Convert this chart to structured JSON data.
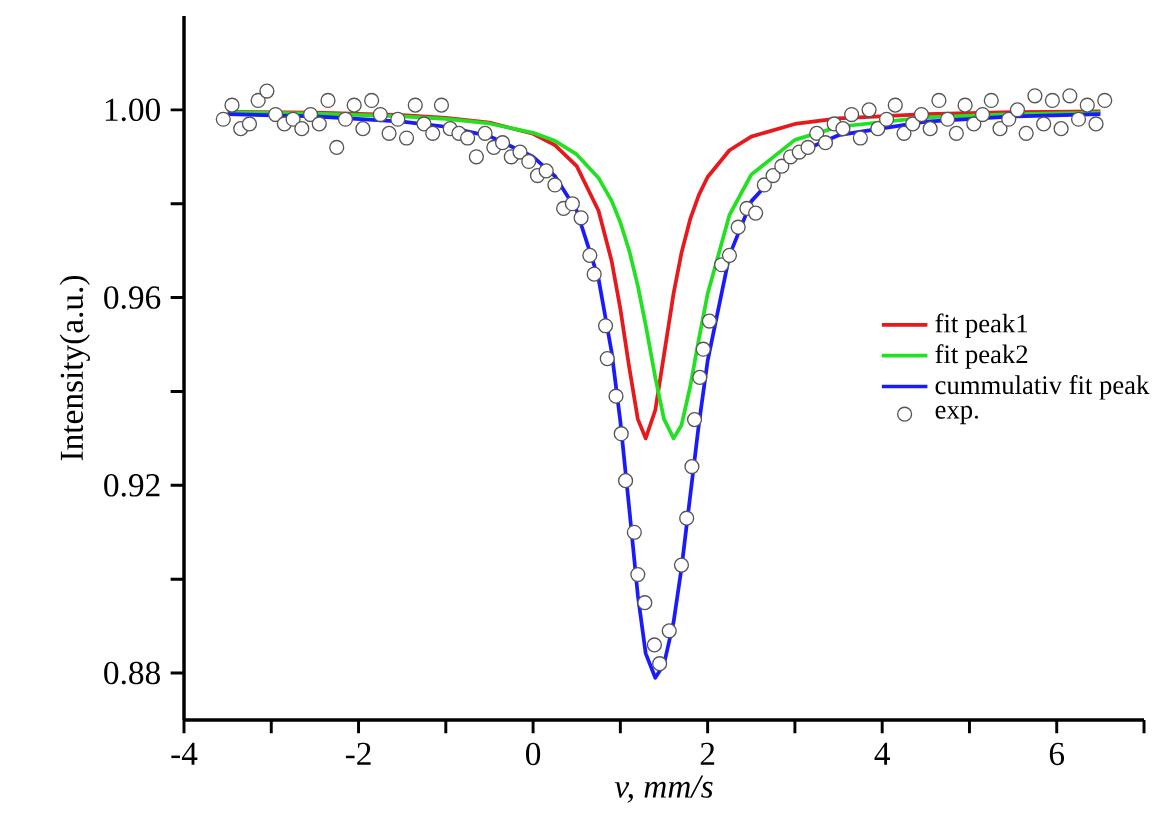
{
  "chart_data": {
    "type": "line",
    "xlabel": "v, mm/s",
    "ylabel": "Intensity(a.u.)",
    "xlim": [
      -4,
      7
    ],
    "ylim": [
      0.87,
      1.02
    ],
    "xticks": [
      -4,
      {
        "value": -3,
        "label": null
      },
      -2,
      {
        "value": -1,
        "label": null
      },
      0,
      {
        "value": 1,
        "label": null
      },
      2,
      {
        "value": 3,
        "label": null
      },
      4,
      {
        "value": 5,
        "label": null
      },
      6,
      {
        "value": 7,
        "label": null
      }
    ],
    "yticks": [
      0.88,
      {
        "value": 0.9,
        "label": null
      },
      0.92,
      {
        "value": 0.94,
        "label": null
      },
      0.96,
      {
        "value": 0.98,
        "label": null
      },
      {
        "value": 1.0,
        "label": "1.00"
      }
    ],
    "legend": "right",
    "line_style": "solid",
    "series": [
      {
        "name": "fit peak1",
        "color": "#e8191c",
        "x": [
          -3.5,
          -2.5,
          -1.5,
          -1,
          -0.5,
          0,
          0.25,
          0.5,
          0.75,
          0.9,
          1.0,
          1.1,
          1.2,
          1.29,
          1.4,
          1.5,
          1.61,
          1.7,
          1.8,
          1.9,
          2.0,
          2.25,
          2.5,
          3,
          3.5,
          4.5,
          5.5,
          6.5
        ],
        "values": [
          0.9996,
          0.9994,
          0.9989,
          0.9983,
          0.9973,
          0.9949,
          0.9925,
          0.988,
          0.9785,
          0.9678,
          0.9576,
          0.9453,
          0.9341,
          0.93,
          0.936,
          0.9478,
          0.9609,
          0.9695,
          0.9767,
          0.9819,
          0.9857,
          0.9914,
          0.9943,
          0.997,
          0.9982,
          0.9991,
          0.9995,
          0.9997
        ]
      },
      {
        "name": "fit peak2",
        "color": "#22e022",
        "x": [
          -3.5,
          -2.5,
          -1.5,
          -1,
          -0.5,
          0,
          0.25,
          0.5,
          0.75,
          0.9,
          1.0,
          1.1,
          1.2,
          1.29,
          1.4,
          1.5,
          1.61,
          1.7,
          1.8,
          1.9,
          2.0,
          2.25,
          2.5,
          3,
          3.5,
          4.5,
          5.5,
          6.5
        ],
        "values": [
          0.9995,
          0.9992,
          0.9986,
          0.9981,
          0.9971,
          0.9951,
          0.9934,
          0.9905,
          0.9855,
          0.9806,
          0.976,
          0.9701,
          0.9625,
          0.9542,
          0.943,
          0.9341,
          0.93,
          0.9328,
          0.941,
          0.9512,
          0.9608,
          0.9776,
          0.9862,
          0.9936,
          0.9964,
          0.9984,
          0.9991,
          0.9994
        ]
      },
      {
        "name": "cummulativ fit peak",
        "color": "#1a1aff",
        "x": [
          -3.5,
          -2.5,
          -1.5,
          -1,
          -0.5,
          0,
          0.25,
          0.5,
          0.75,
          0.9,
          1.0,
          1.1,
          1.2,
          1.29,
          1.4,
          1.5,
          1.61,
          1.7,
          1.8,
          1.9,
          2.0,
          2.25,
          2.5,
          3,
          3.5,
          4.5,
          5.5,
          6.5
        ],
        "values": [
          0.9991,
          0.9986,
          0.9975,
          0.9964,
          0.9944,
          0.99,
          0.9859,
          0.9785,
          0.964,
          0.9484,
          0.9336,
          0.9154,
          0.8966,
          0.8842,
          0.879,
          0.8819,
          0.8909,
          0.9023,
          0.9177,
          0.9331,
          0.9465,
          0.969,
          0.9805,
          0.9906,
          0.9946,
          0.9975,
          0.9986,
          0.9991
        ]
      },
      {
        "name": "exp.",
        "type": "scatter",
        "marker": "circle",
        "color": "#555555",
        "x": [
          -3.55,
          -3.45,
          -3.35,
          -3.25,
          -3.15,
          -3.05,
          -2.95,
          -2.85,
          -2.75,
          -2.65,
          -2.55,
          -2.45,
          -2.35,
          -2.25,
          -2.15,
          -2.05,
          -1.95,
          -1.85,
          -1.75,
          -1.65,
          -1.55,
          -1.45,
          -1.35,
          -1.25,
          -1.15,
          -1.05,
          -0.95,
          -0.85,
          -0.75,
          -0.65,
          -0.55,
          -0.45,
          -0.35,
          -0.25,
          -0.15,
          -0.05,
          0.05,
          0.15,
          0.25,
          0.35,
          0.45,
          0.55,
          0.65,
          0.7,
          0.83,
          0.85,
          0.95,
          1.01,
          1.06,
          1.16,
          1.2,
          1.28,
          1.39,
          1.45,
          1.56,
          1.7,
          1.76,
          1.82,
          1.85,
          1.91,
          1.95,
          2.02,
          2.16,
          2.25,
          2.35,
          2.45,
          2.55,
          2.65,
          2.75,
          2.85,
          2.95,
          3.05,
          3.15,
          3.25,
          3.35,
          3.45,
          3.55,
          3.65,
          3.75,
          3.85,
          3.95,
          4.05,
          4.15,
          4.25,
          4.35,
          4.45,
          4.55,
          4.65,
          4.75,
          4.85,
          4.95,
          5.05,
          5.15,
          5.25,
          5.35,
          5.45,
          5.55,
          5.65,
          5.75,
          5.85,
          5.95,
          6.05,
          6.15,
          6.25,
          6.35,
          6.45,
          6.55
        ],
        "values": [
          0.998,
          1.001,
          0.996,
          0.997,
          1.002,
          1.004,
          0.999,
          0.997,
          0.998,
          0.996,
          0.999,
          0.997,
          1.002,
          0.992,
          0.998,
          1.001,
          0.996,
          1.002,
          0.999,
          0.995,
          0.998,
          0.994,
          1.001,
          0.997,
          0.995,
          1.001,
          0.996,
          0.995,
          0.994,
          0.99,
          0.995,
          0.992,
          0.993,
          0.99,
          0.991,
          0.989,
          0.986,
          0.987,
          0.984,
          0.979,
          0.98,
          0.977,
          0.969,
          0.965,
          0.954,
          0.947,
          0.939,
          0.931,
          0.921,
          0.91,
          0.901,
          0.895,
          0.886,
          0.882,
          0.889,
          0.903,
          0.913,
          0.924,
          0.934,
          0.943,
          0.949,
          0.955,
          0.967,
          0.969,
          0.975,
          0.979,
          0.978,
          0.984,
          0.986,
          0.988,
          0.99,
          0.991,
          0.992,
          0.995,
          0.993,
          0.997,
          0.996,
          0.999,
          0.994,
          1.0,
          0.996,
          0.998,
          1.001,
          0.995,
          0.997,
          0.999,
          0.996,
          1.002,
          0.998,
          0.995,
          1.001,
          0.997,
          0.999,
          1.002,
          0.996,
          0.998,
          1.0,
          0.995,
          1.003,
          0.997,
          1.002,
          0.996,
          1.003,
          0.998,
          1.001,
          0.997,
          1.002
        ]
      }
    ]
  }
}
